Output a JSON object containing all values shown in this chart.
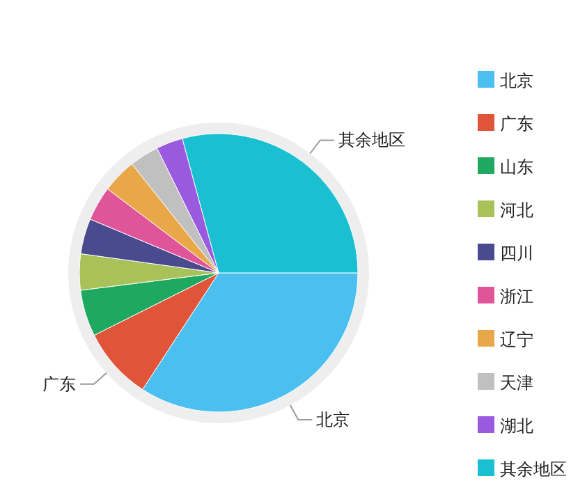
{
  "chart_data": {
    "type": "pie",
    "categories": [
      "北京",
      "广东",
      "山东",
      "河北",
      "四川",
      "浙江",
      "辽宁",
      "天津",
      "湖北",
      "其余地区"
    ],
    "values": [
      34.2,
      8.4,
      5.4,
      4.2,
      4.1,
      4.0,
      4.0,
      3.4,
      3.1,
      29.2
    ],
    "colors": [
      "#4bbfef",
      "#e0553a",
      "#1fa860",
      "#a8c259",
      "#4a4a8f",
      "#e0559a",
      "#e8a84a",
      "#c0c0c0",
      "#9a5ae0",
      "#1bbfd2"
    ],
    "annotations": [
      {
        "text": "其余地区",
        "x": "其余地区"
      },
      {
        "text": "广东",
        "x": "广东"
      },
      {
        "text": "北京",
        "x": "北京"
      }
    ],
    "legend": "right"
  }
}
